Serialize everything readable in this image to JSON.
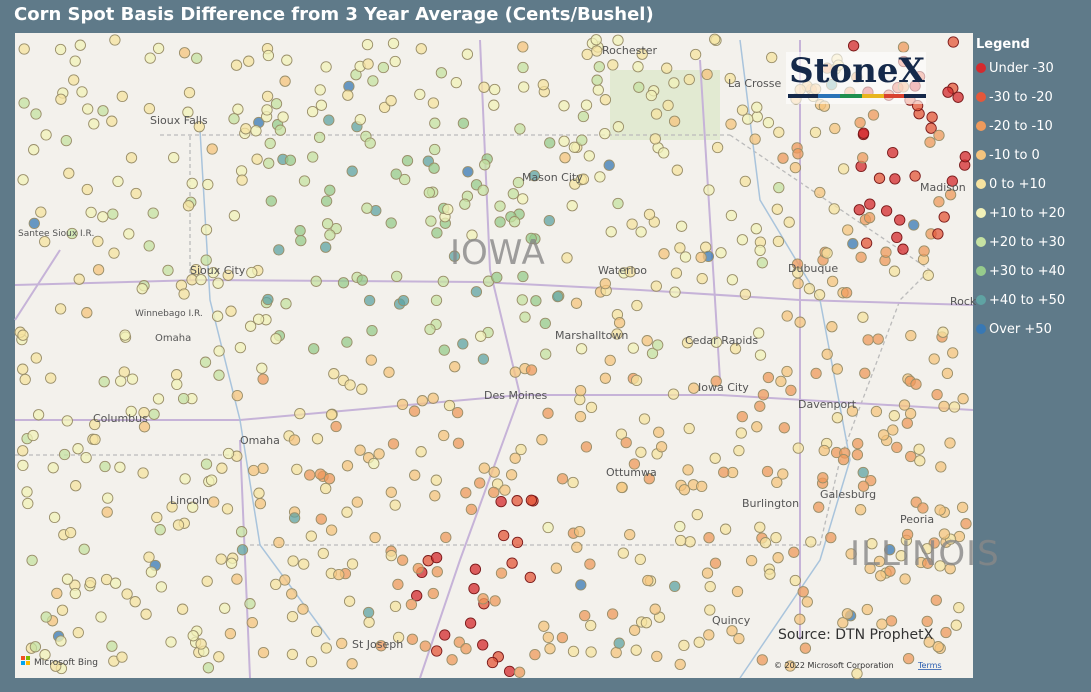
{
  "title": "Corn Spot Basis Difference from 3 Year Average (Cents/Bushel)",
  "legend": {
    "title": "Legend",
    "items": [
      {
        "label": "Under -30",
        "color": "#d42a2e"
      },
      {
        "label": "-30 to -20",
        "color": "#e4573a"
      },
      {
        "label": "-20 to -10",
        "color": "#ef9a5c"
      },
      {
        "label": "-10 to 0",
        "color": "#f5c47e"
      },
      {
        "label": "0 to +10",
        "color": "#f6e3a0"
      },
      {
        "label": "+10 to +20",
        "color": "#f1f1b8"
      },
      {
        "label": "+20 to +30",
        "color": "#c6e2a2"
      },
      {
        "label": "+30 to +40",
        "color": "#97cb8c"
      },
      {
        "label": "+40 to +50",
        "color": "#5fa3a3"
      },
      {
        "label": "Over +50",
        "color": "#3878b4"
      }
    ]
  },
  "logo": "StoneX",
  "places": [
    "Rochester",
    "La Crosse",
    "Sioux Falls",
    "Mason City",
    "Madison",
    "IOWA",
    "Waterloo",
    "Dubuque",
    "Sioux City",
    "Santee Sioux I.R.",
    "Winnebago I.R.",
    "Omaha",
    "Marshalltown",
    "Cedar Rapids",
    "Iowa City",
    "Des Moines",
    "Davenport",
    "Columbus",
    "Omaha",
    "Ottumwa",
    "Galesburg",
    "Burlington",
    "Peoria",
    "ILLINOIS",
    "Lincoln",
    "Quincy",
    "St Joseph",
    "Rock"
  ],
  "source": "Source: DTN ProphetX",
  "bing": "Microsoft Bing",
  "copyright": "© 2022 Microsoft Corporation",
  "terms": "Terms"
}
